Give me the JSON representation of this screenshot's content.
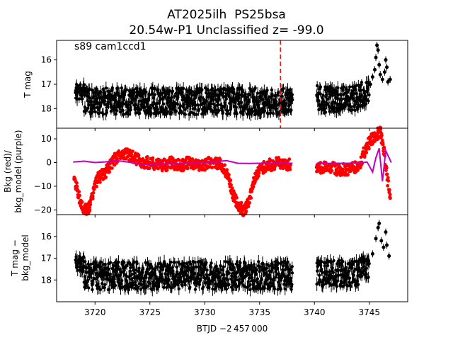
{
  "figure": {
    "title_line1": "AT2025ilh  PS25bsa",
    "title_line2": "20.54w-P1 Unclassified z= -99.0",
    "annotation": "s89 cam1ccd1",
    "xlabel": "BTJD −2 457 000"
  },
  "chart_data": [
    {
      "type": "scatter",
      "panel": "top",
      "ylabel": "T mag",
      "xlim": [
        3716.5,
        3748.5
      ],
      "ylim": [
        18.8,
        15.2
      ],
      "y_inverted": true,
      "yticks": [
        16,
        17,
        18
      ],
      "xticks": [
        3720,
        3725,
        3730,
        3735,
        3740,
        3745
      ],
      "xtick_labels_shown": false,
      "marker_color": "#000000",
      "error_bars": true,
      "vline": {
        "x": 3736.9,
        "color": "#ff0000",
        "style": "dashed"
      },
      "segments": [
        {
          "x_start": 3718.2,
          "x_end": 3719.0,
          "y_center": 17.3,
          "y_spread": 0.7
        },
        {
          "x_start": 3719.0,
          "x_end": 3738.0,
          "y_center": 17.7,
          "y_spread": 1.1
        },
        {
          "x_start": 3740.2,
          "x_end": 3744.0,
          "y_center": 17.6,
          "y_spread": 1.1
        },
        {
          "x_start": 3744.0,
          "x_end": 3745.0,
          "y_center": 17.4,
          "y_spread": 1.0
        }
      ],
      "highlights": [
        {
          "x": 3745.1,
          "y": 17.0
        },
        {
          "x": 3745.3,
          "y": 16.7
        },
        {
          "x": 3745.5,
          "y": 16.4
        },
        {
          "x": 3745.6,
          "y": 15.9
        },
        {
          "x": 3745.7,
          "y": 15.4
        },
        {
          "x": 3745.8,
          "y": 15.6
        },
        {
          "x": 3745.9,
          "y": 16.2
        },
        {
          "x": 3746.0,
          "y": 16.6
        },
        {
          "x": 3746.2,
          "y": 16.8
        },
        {
          "x": 3746.4,
          "y": 16.5
        },
        {
          "x": 3746.5,
          "y": 16.0
        },
        {
          "x": 3746.6,
          "y": 16.3
        },
        {
          "x": 3746.7,
          "y": 16.9
        },
        {
          "x": 3746.9,
          "y": 16.8
        }
      ]
    },
    {
      "type": "scatter",
      "panel": "middle",
      "ylabel_line1": "Bkg (red)/",
      "ylabel_line2": "bkg_model (purple)",
      "xlim": [
        3716.5,
        3748.5
      ],
      "ylim": [
        -22,
        14.5
      ],
      "yticks": [
        -20,
        -10,
        0,
        10
      ],
      "ytick_labels": [
        "−20",
        "−10",
        "0",
        "10"
      ],
      "xticks": [
        3720,
        3725,
        3730,
        3735,
        3740,
        3745
      ],
      "xtick_labels_shown": false,
      "series": [
        {
          "kind": "points",
          "color": "#ff0000",
          "x": [
            3718.1,
            3718.3,
            3718.5,
            3718.7,
            3718.9,
            3719.1,
            3719.3,
            3719.5,
            3719.7,
            3719.9,
            3720.1,
            3720.4,
            3720.7,
            3721.0,
            3721.3,
            3721.6,
            3721.9,
            3722.2,
            3722.5,
            3722.8,
            3723.2,
            3723.6,
            3724.0,
            3724.5,
            3725.0,
            3725.5,
            3726.0,
            3726.5,
            3727.0,
            3727.5,
            3728.0,
            3728.5,
            3729.0,
            3729.5,
            3730.0,
            3730.5,
            3731.0,
            3731.5,
            3732.0,
            3732.3,
            3732.6,
            3732.9,
            3733.2,
            3733.5,
            3733.8,
            3734.1,
            3734.4,
            3734.7,
            3735.0,
            3735.4,
            3735.8,
            3736.2,
            3736.6,
            3737.0,
            3737.4,
            3737.8,
            3740.2,
            3740.6,
            3741.0,
            3741.5,
            3742.0,
            3742.5,
            3743.0,
            3743.5,
            3743.9,
            3744.2,
            3744.5,
            3744.8,
            3745.1,
            3745.4,
            3745.7,
            3746.0,
            3746.3,
            3746.6,
            3746.9
          ],
          "y": [
            -7,
            -10,
            -14,
            -17,
            -19,
            -20,
            -20,
            -19,
            -15,
            -11,
            -8,
            -6,
            -5,
            -4,
            -2,
            0,
            2,
            3,
            4,
            4,
            3,
            2,
            1,
            0,
            0,
            -1,
            -1,
            -1,
            0,
            -1,
            -1,
            0,
            -1,
            -1,
            -1,
            0,
            0,
            -1,
            -4,
            -9,
            -14,
            -17,
            -19,
            -20,
            -19,
            -15,
            -9,
            -5,
            -3,
            -2,
            -1,
            -1,
            0,
            -1,
            -1,
            -1,
            -2,
            -2,
            -2,
            -2,
            -3,
            -3,
            -3,
            -2,
            -2,
            0,
            4,
            7,
            9,
            11,
            12,
            13,
            6,
            -5,
            -15
          ]
        },
        {
          "kind": "line",
          "color": "#bf00bf",
          "x": [
            3718.0,
            3719.0,
            3720.0,
            3721.0,
            3722.0,
            3723.0,
            3724.0,
            3725.0,
            3726.0,
            3727.0,
            3728.0,
            3729.0,
            3730.0,
            3731.0,
            3732.0,
            3733.0,
            3734.0,
            3735.0,
            3736.0,
            3737.0,
            3738.0,
            3740.2,
            3741.0,
            3742.0,
            3743.0,
            3744.0,
            3744.8,
            3745.3,
            3745.6,
            3745.9,
            3746.2,
            3746.5,
            3746.8,
            3747.0
          ],
          "y": [
            0.2,
            0.6,
            0.0,
            0.3,
            0.8,
            0.2,
            -0.6,
            -0.8,
            -0.5,
            -0.6,
            -0.4,
            -0.2,
            -0.1,
            0.4,
            0.8,
            -0.3,
            -0.4,
            -0.3,
            -0.3,
            -0.2,
            -0.3,
            -0.4,
            -0.4,
            -0.3,
            -0.3,
            -0.2,
            0.2,
            -4.0,
            2.0,
            6.0,
            -8.0,
            5.0,
            2.0,
            0.0
          ]
        }
      ]
    },
    {
      "type": "scatter",
      "panel": "bottom",
      "ylabel_line1": "T mag −",
      "ylabel_line2": "bkg_model",
      "xlim": [
        3716.5,
        3748.5
      ],
      "ylim": [
        19.0,
        15.0
      ],
      "y_inverted": true,
      "yticks": [
        16,
        17,
        18
      ],
      "xticks": [
        3720,
        3725,
        3730,
        3735,
        3740,
        3745
      ],
      "xtick_labels": [
        "3720",
        "3725",
        "3730",
        "3735",
        "3740",
        "3745"
      ],
      "marker_color": "#000000",
      "error_bars": true,
      "segments": [
        {
          "x_start": 3718.2,
          "x_end": 3719.0,
          "y_center": 17.3,
          "y_spread": 0.8
        },
        {
          "x_start": 3719.0,
          "x_end": 3738.0,
          "y_center": 17.8,
          "y_spread": 1.3
        },
        {
          "x_start": 3740.2,
          "x_end": 3744.0,
          "y_center": 17.7,
          "y_spread": 1.2
        },
        {
          "x_start": 3744.0,
          "x_end": 3745.0,
          "y_center": 17.4,
          "y_spread": 1.0
        }
      ],
      "highlights": [
        {
          "x": 3745.3,
          "y": 16.8
        },
        {
          "x": 3745.6,
          "y": 16.1
        },
        {
          "x": 3745.8,
          "y": 15.6
        },
        {
          "x": 3745.9,
          "y": 15.4
        },
        {
          "x": 3746.1,
          "y": 16.2
        },
        {
          "x": 3746.3,
          "y": 16.5
        },
        {
          "x": 3746.5,
          "y": 15.8
        },
        {
          "x": 3746.6,
          "y": 16.4
        },
        {
          "x": 3746.8,
          "y": 16.9
        }
      ]
    }
  ]
}
